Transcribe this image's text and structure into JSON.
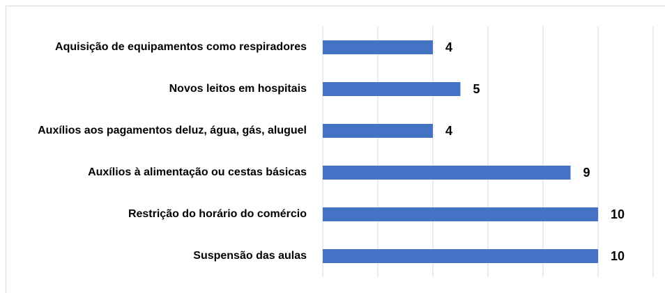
{
  "chart_data": {
    "type": "bar",
    "orientation": "horizontal",
    "categories": [
      "Aquisição de equipamentos como respiradores",
      "Novos leitos em hospitais",
      "Auxílios aos pagamentos deluz, água, gás, aluguel",
      "Auxílios à alimentação ou cestas básicas",
      "Restrição do horário do comércio",
      "Suspensão das aulas"
    ],
    "values": [
      4,
      5,
      4,
      9,
      10,
      10
    ],
    "color": "#4472c4",
    "xlim": [
      0,
      12
    ],
    "xticks": [
      0,
      2,
      4,
      6,
      8,
      10,
      12
    ],
    "grid": true
  }
}
